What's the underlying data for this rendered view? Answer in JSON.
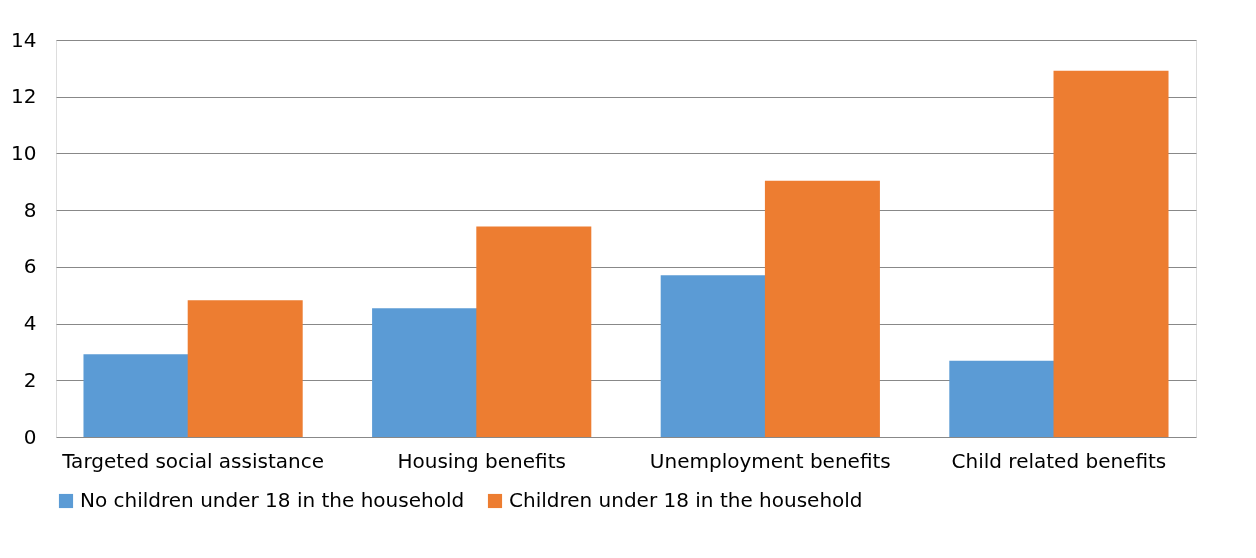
{
  "chart_data": {
    "type": "bar",
    "categories": [
      "Targeted social assistance",
      "Housing benefits",
      "Unemployment benefits",
      "Child related benefits"
    ],
    "series": [
      {
        "name": "No children under 18 in the household",
        "color": "#5b9bd5",
        "values": [
          2.92,
          4.54,
          5.7,
          2.69
        ]
      },
      {
        "name": "Children under 18 in the household",
        "color": "#ed7d31",
        "values": [
          4.82,
          7.42,
          9.04,
          12.92
        ]
      }
    ],
    "ylim": [
      0,
      14
    ],
    "yticks": [
      0,
      2,
      4,
      6,
      8,
      10,
      12,
      14
    ],
    "grid": "y",
    "legend": "bottom"
  }
}
